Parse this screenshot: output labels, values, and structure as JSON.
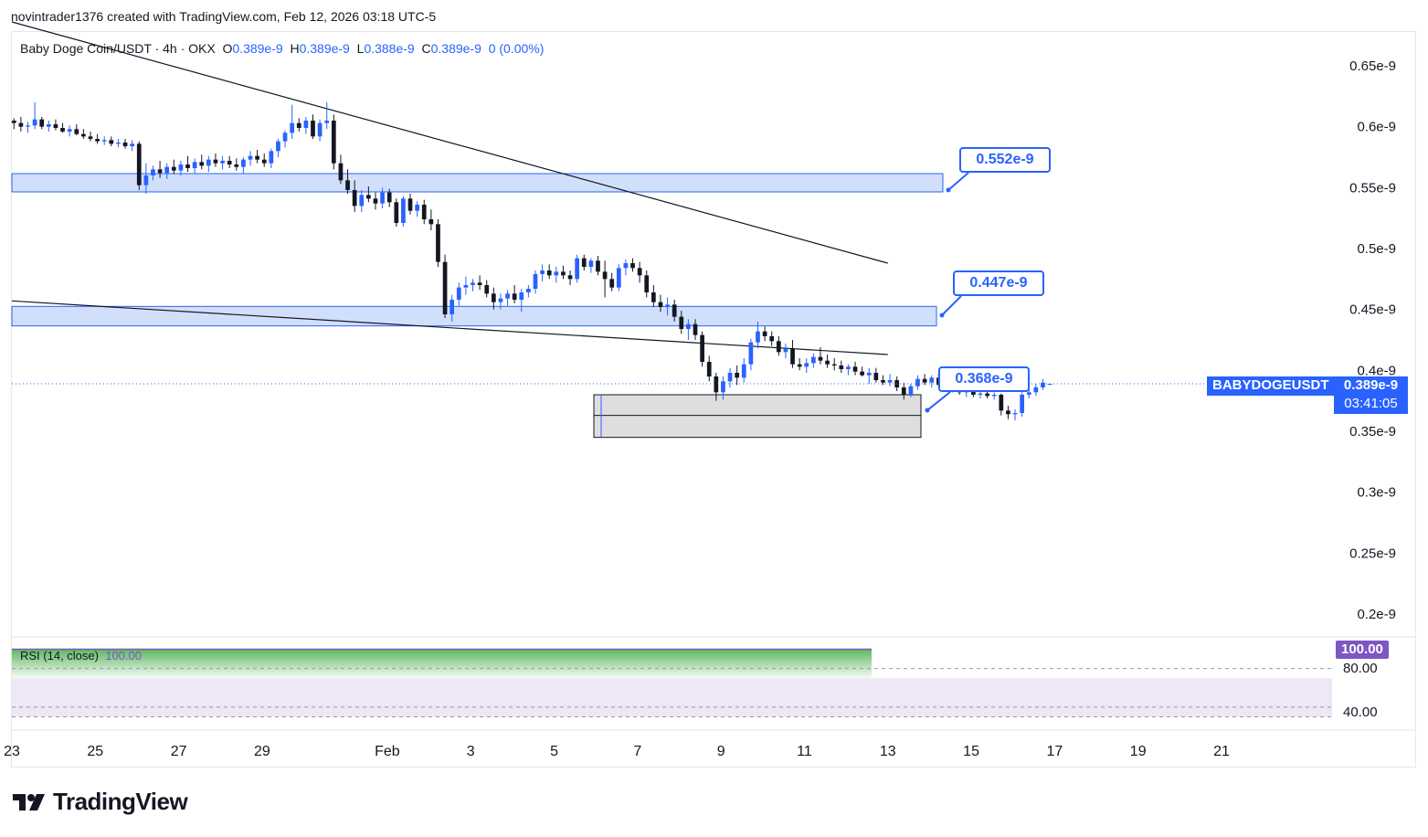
{
  "header": {
    "credit": "novintrader1376 created with TradingView.com, Feb 12, 2026 03:18 UTC-5"
  },
  "legend": {
    "symbol": "Baby Doge Coin/USDT · 4h · OKX",
    "o_label": "O",
    "o_value": "0.389e-9",
    "h_label": "H",
    "h_value": "0.389e-9",
    "l_label": "L",
    "l_value": "0.388e-9",
    "c_label": "C",
    "c_value": "0.389e-9",
    "change": "0 (0.00%)"
  },
  "price_tag": {
    "symbol": "BABYDOGEUSDT",
    "price": "0.389e-9",
    "countdown": "03:41:05"
  },
  "callouts": {
    "top": "0.552e-9",
    "middle": "0.447e-9",
    "bottom": "0.368e-9"
  },
  "rsi": {
    "label": "RSI (14, close)",
    "value": "100.00",
    "tag": "100.00",
    "level_high": "80.00",
    "level_low": "40.00",
    "color": "#7e57c2"
  },
  "brand": {
    "name": "TradingView"
  },
  "colors": {
    "up": "#2962ff",
    "down": "#131722",
    "zone_fill": "#d1dffb",
    "zone_border": "#2962ff",
    "range_fill": "#d6d6d6",
    "rsi_band": "#ede7f6"
  },
  "chart_data": {
    "type": "candlestick",
    "y_scale": "linear",
    "y_ticks": [
      "0.65e-9",
      "0.6e-9",
      "0.55e-9",
      "0.5e-9",
      "0.45e-9",
      "0.4e-9",
      "0.35e-9",
      "0.3e-9",
      "0.25e-9",
      "0.2e-9"
    ],
    "y_tick_values": [
      0.65,
      0.6,
      0.55,
      0.5,
      0.45,
      0.4,
      0.35,
      0.3,
      0.25,
      0.2
    ],
    "x_ticks": [
      "23",
      "25",
      "27",
      "29",
      "Feb",
      "3",
      "5",
      "7",
      "9",
      "11",
      "13",
      "15",
      "17",
      "19",
      "21"
    ],
    "x_tick_days": [
      23,
      25,
      27,
      29,
      32,
      34,
      36,
      38,
      40,
      42,
      44,
      46,
      48,
      50,
      52
    ],
    "day_axis_origin": "Jan 0 = day 0; Feb 1 = day 32",
    "ylim": [
      0.182,
      0.677
    ],
    "xlim_days": [
      23.0,
      54.65
    ],
    "candle_interval_days": 0.16667,
    "first_candle_day": 23.05,
    "candles": [
      [
        0.605,
        0.607,
        0.598,
        0.603
      ],
      [
        0.603,
        0.608,
        0.596,
        0.6
      ],
      [
        0.6,
        0.604,
        0.595,
        0.601
      ],
      [
        0.601,
        0.62,
        0.598,
        0.606
      ],
      [
        0.606,
        0.608,
        0.598,
        0.6
      ],
      [
        0.6,
        0.605,
        0.596,
        0.602
      ],
      [
        0.602,
        0.606,
        0.597,
        0.599
      ],
      [
        0.599,
        0.603,
        0.595,
        0.596
      ],
      [
        0.596,
        0.601,
        0.592,
        0.598
      ],
      [
        0.598,
        0.602,
        0.593,
        0.594
      ],
      [
        0.594,
        0.598,
        0.59,
        0.592
      ],
      [
        0.592,
        0.596,
        0.588,
        0.59
      ],
      [
        0.59,
        0.594,
        0.586,
        0.588
      ],
      [
        0.588,
        0.592,
        0.585,
        0.589
      ],
      [
        0.589,
        0.592,
        0.584,
        0.586
      ],
      [
        0.586,
        0.59,
        0.583,
        0.587
      ],
      [
        0.587,
        0.59,
        0.582,
        0.584
      ],
      [
        0.584,
        0.589,
        0.58,
        0.586
      ],
      [
        0.586,
        0.588,
        0.548,
        0.552
      ],
      [
        0.552,
        0.57,
        0.545,
        0.56
      ],
      [
        0.56,
        0.568,
        0.556,
        0.565
      ],
      [
        0.565,
        0.572,
        0.558,
        0.562
      ],
      [
        0.562,
        0.57,
        0.557,
        0.567
      ],
      [
        0.567,
        0.573,
        0.561,
        0.564
      ],
      [
        0.564,
        0.572,
        0.56,
        0.569
      ],
      [
        0.569,
        0.576,
        0.563,
        0.566
      ],
      [
        0.566,
        0.574,
        0.562,
        0.571
      ],
      [
        0.571,
        0.577,
        0.565,
        0.568
      ],
      [
        0.568,
        0.576,
        0.563,
        0.573
      ],
      [
        0.573,
        0.578,
        0.567,
        0.57
      ],
      [
        0.57,
        0.576,
        0.565,
        0.572
      ],
      [
        0.572,
        0.576,
        0.566,
        0.569
      ],
      [
        0.569,
        0.574,
        0.564,
        0.567
      ],
      [
        0.567,
        0.575,
        0.562,
        0.573
      ],
      [
        0.573,
        0.58,
        0.568,
        0.576
      ],
      [
        0.576,
        0.581,
        0.57,
        0.573
      ],
      [
        0.573,
        0.578,
        0.567,
        0.57
      ],
      [
        0.57,
        0.582,
        0.566,
        0.58
      ],
      [
        0.58,
        0.59,
        0.575,
        0.588
      ],
      [
        0.588,
        0.597,
        0.583,
        0.595
      ],
      [
        0.595,
        0.618,
        0.59,
        0.603
      ],
      [
        0.603,
        0.607,
        0.596,
        0.599
      ],
      [
        0.599,
        0.608,
        0.594,
        0.605
      ],
      [
        0.605,
        0.61,
        0.59,
        0.592
      ],
      [
        0.592,
        0.606,
        0.588,
        0.603
      ],
      [
        0.603,
        0.62,
        0.598,
        0.605
      ],
      [
        0.605,
        0.61,
        0.565,
        0.57
      ],
      [
        0.57,
        0.577,
        0.553,
        0.556
      ],
      [
        0.556,
        0.565,
        0.545,
        0.548
      ],
      [
        0.548,
        0.556,
        0.53,
        0.535
      ],
      [
        0.535,
        0.548,
        0.53,
        0.544
      ],
      [
        0.544,
        0.551,
        0.538,
        0.541
      ],
      [
        0.541,
        0.546,
        0.532,
        0.537
      ],
      [
        0.537,
        0.55,
        0.533,
        0.546
      ],
      [
        0.546,
        0.549,
        0.534,
        0.538
      ],
      [
        0.538,
        0.541,
        0.518,
        0.521
      ],
      [
        0.521,
        0.543,
        0.518,
        0.541
      ],
      [
        0.541,
        0.545,
        0.528,
        0.531
      ],
      [
        0.531,
        0.539,
        0.526,
        0.536
      ],
      [
        0.536,
        0.54,
        0.52,
        0.524
      ],
      [
        0.524,
        0.532,
        0.515,
        0.52
      ],
      [
        0.52,
        0.524,
        0.485,
        0.489
      ],
      [
        0.489,
        0.495,
        0.443,
        0.446
      ],
      [
        0.446,
        0.462,
        0.44,
        0.458
      ],
      [
        0.458,
        0.472,
        0.453,
        0.468
      ],
      [
        0.468,
        0.477,
        0.462,
        0.47
      ],
      [
        0.47,
        0.475,
        0.465,
        0.472
      ],
      [
        0.472,
        0.478,
        0.466,
        0.47
      ],
      [
        0.47,
        0.474,
        0.46,
        0.463
      ],
      [
        0.463,
        0.468,
        0.45,
        0.456
      ],
      [
        0.456,
        0.463,
        0.45,
        0.459
      ],
      [
        0.459,
        0.466,
        0.453,
        0.463
      ],
      [
        0.463,
        0.47,
        0.455,
        0.458
      ],
      [
        0.458,
        0.467,
        0.448,
        0.464
      ],
      [
        0.464,
        0.47,
        0.46,
        0.467
      ],
      [
        0.467,
        0.482,
        0.463,
        0.479
      ],
      [
        0.479,
        0.487,
        0.473,
        0.482
      ],
      [
        0.482,
        0.487,
        0.475,
        0.478
      ],
      [
        0.478,
        0.485,
        0.472,
        0.481
      ],
      [
        0.481,
        0.486,
        0.475,
        0.478
      ],
      [
        0.478,
        0.482,
        0.47,
        0.475
      ],
      [
        0.475,
        0.495,
        0.472,
        0.492
      ],
      [
        0.492,
        0.495,
        0.482,
        0.485
      ],
      [
        0.485,
        0.492,
        0.48,
        0.49
      ],
      [
        0.49,
        0.494,
        0.478,
        0.481
      ],
      [
        0.481,
        0.49,
        0.46,
        0.475
      ],
      [
        0.475,
        0.48,
        0.465,
        0.468
      ],
      [
        0.468,
        0.487,
        0.465,
        0.484
      ],
      [
        0.484,
        0.491,
        0.478,
        0.488
      ],
      [
        0.488,
        0.492,
        0.481,
        0.484
      ],
      [
        0.484,
        0.489,
        0.472,
        0.478
      ],
      [
        0.478,
        0.482,
        0.46,
        0.464
      ],
      [
        0.464,
        0.47,
        0.452,
        0.456
      ],
      [
        0.456,
        0.462,
        0.448,
        0.452
      ],
      [
        0.452,
        0.46,
        0.445,
        0.454
      ],
      [
        0.454,
        0.458,
        0.44,
        0.444
      ],
      [
        0.444,
        0.449,
        0.43,
        0.434
      ],
      [
        0.434,
        0.442,
        0.425,
        0.438
      ],
      [
        0.438,
        0.442,
        0.425,
        0.429
      ],
      [
        0.429,
        0.432,
        0.403,
        0.407
      ],
      [
        0.407,
        0.412,
        0.391,
        0.395
      ],
      [
        0.395,
        0.398,
        0.375,
        0.382
      ],
      [
        0.382,
        0.395,
        0.376,
        0.391
      ],
      [
        0.391,
        0.402,
        0.386,
        0.398
      ],
      [
        0.398,
        0.404,
        0.388,
        0.394
      ],
      [
        0.394,
        0.41,
        0.39,
        0.405
      ],
      [
        0.405,
        0.426,
        0.4,
        0.423
      ],
      [
        0.423,
        0.44,
        0.418,
        0.432
      ],
      [
        0.432,
        0.436,
        0.424,
        0.428
      ],
      [
        0.428,
        0.432,
        0.42,
        0.424
      ],
      [
        0.424,
        0.428,
        0.412,
        0.415
      ],
      [
        0.415,
        0.422,
        0.41,
        0.418
      ],
      [
        0.418,
        0.425,
        0.402,
        0.405
      ],
      [
        0.405,
        0.41,
        0.4,
        0.403
      ],
      [
        0.403,
        0.41,
        0.398,
        0.406
      ],
      [
        0.406,
        0.414,
        0.402,
        0.411
      ],
      [
        0.411,
        0.419,
        0.405,
        0.408
      ],
      [
        0.408,
        0.413,
        0.402,
        0.405
      ],
      [
        0.405,
        0.41,
        0.4,
        0.404
      ],
      [
        0.404,
        0.408,
        0.398,
        0.401
      ],
      [
        0.401,
        0.405,
        0.396,
        0.403
      ],
      [
        0.403,
        0.407,
        0.396,
        0.399
      ],
      [
        0.399,
        0.403,
        0.395,
        0.396
      ],
      [
        0.396,
        0.402,
        0.389,
        0.398
      ],
      [
        0.398,
        0.402,
        0.39,
        0.392
      ],
      [
        0.392,
        0.396,
        0.388,
        0.39
      ],
      [
        0.39,
        0.397,
        0.387,
        0.392
      ],
      [
        0.392,
        0.395,
        0.383,
        0.386
      ],
      [
        0.386,
        0.39,
        0.376,
        0.38
      ],
      [
        0.38,
        0.389,
        0.378,
        0.387
      ],
      [
        0.387,
        0.396,
        0.384,
        0.393
      ],
      [
        0.393,
        0.397,
        0.388,
        0.39
      ],
      [
        0.39,
        0.396,
        0.386,
        0.394
      ],
      [
        0.394,
        0.398,
        0.386,
        0.388
      ],
      [
        0.388,
        0.392,
        0.384,
        0.389
      ],
      [
        0.389,
        0.393,
        0.382,
        0.384
      ],
      [
        0.384,
        0.387,
        0.38,
        0.382
      ],
      [
        0.382,
        0.386,
        0.378,
        0.383
      ],
      [
        0.383,
        0.386,
        0.378,
        0.38
      ],
      [
        0.38,
        0.384,
        0.377,
        0.381
      ],
      [
        0.381,
        0.385,
        0.377,
        0.379
      ],
      [
        0.379,
        0.382,
        0.376,
        0.38
      ],
      [
        0.38,
        0.381,
        0.363,
        0.367
      ],
      [
        0.367,
        0.371,
        0.36,
        0.364
      ],
      [
        0.364,
        0.368,
        0.359,
        0.365
      ],
      [
        0.365,
        0.382,
        0.362,
        0.38
      ],
      [
        0.38,
        0.385,
        0.377,
        0.382
      ],
      [
        0.382,
        0.389,
        0.379,
        0.386
      ],
      [
        0.386,
        0.393,
        0.384,
        0.39
      ],
      [
        0.389,
        0.389,
        0.388,
        0.389
      ]
    ],
    "zones": [
      {
        "low": 0.5465,
        "high": 0.5615,
        "label": "0.552e-9"
      },
      {
        "low": 0.4365,
        "high": 0.4525,
        "label": "0.447e-9"
      }
    ],
    "range_box": {
      "low": 0.345,
      "high": 0.38,
      "mid": 0.363,
      "label": "0.368e-9"
    },
    "trendlines": [
      {
        "from": [
          23.0,
          0.686
        ],
        "to": [
          32.4,
          0.62
        ],
        "extend_to": [
          44.0,
          0.488
        ]
      },
      {
        "from": [
          23.0,
          0.457
        ],
        "to": [
          44.0,
          0.413
        ]
      }
    ],
    "current_price": 0.389,
    "rsi": {
      "ylim": [
        20,
        110
      ],
      "levels": [
        80,
        40
      ],
      "band": [
        70,
        30
      ],
      "value": 100.0
    }
  }
}
